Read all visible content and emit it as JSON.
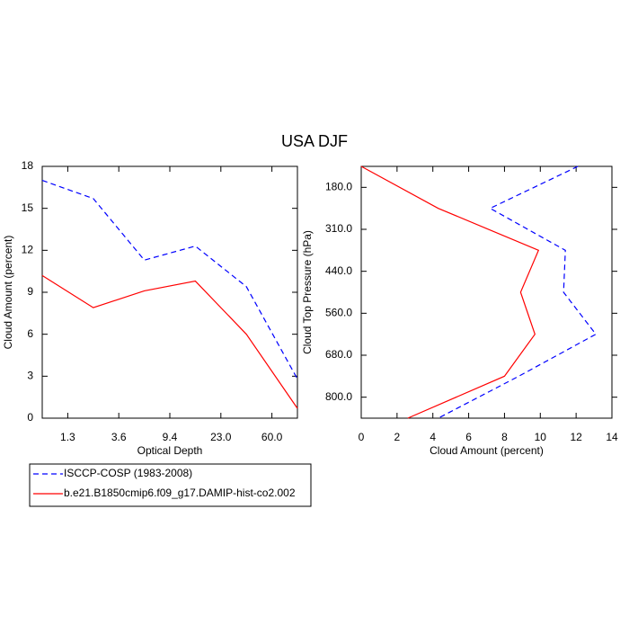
{
  "title": "USA DJF",
  "chart_data": [
    {
      "type": "line",
      "orientation": "vertical",
      "xlabel": "Optical Depth",
      "ylabel": "Cloud Amount (percent)",
      "categories": [
        null,
        null,
        null,
        null,
        null,
        null
      ],
      "xtick_labels": [
        "1.3",
        "3.6",
        "9.4",
        "23.0",
        "60.0"
      ],
      "ylim": [
        0,
        18
      ],
      "yticks": [
        0,
        3,
        6,
        9,
        12,
        15,
        18
      ],
      "series": [
        {
          "name": "ISCCP-COSP (1983-2008)",
          "color": "#0000ff",
          "style": "dashed",
          "values": [
            17.0,
            15.7,
            11.3,
            12.3,
            9.4,
            2.8
          ]
        },
        {
          "name": "b.e21.B1850cmip6.f09_g17.DAMIP-hist-co2.002",
          "color": "#ff0000",
          "style": "solid",
          "values": [
            10.2,
            7.9,
            9.1,
            9.8,
            6.0,
            0.7
          ]
        }
      ]
    },
    {
      "type": "line",
      "orientation": "horizontal",
      "xlabel": "Cloud Amount (percent)",
      "ylabel": "Cloud Top Pressure (hPa)",
      "categories": [
        null,
        null,
        null,
        null,
        null,
        null,
        null
      ],
      "ytick_labels": [
        "180.0",
        "310.0",
        "440.0",
        "560.0",
        "680.0",
        "800.0"
      ],
      "xlim": [
        0,
        14
      ],
      "xticks": [
        0,
        2,
        4,
        6,
        8,
        10,
        12,
        14
      ],
      "series": [
        {
          "color": "#0000ff",
          "style": "dashed",
          "values": [
            12.1,
            7.2,
            11.4,
            11.3,
            13.1,
            8.8,
            4.3
          ]
        },
        {
          "color": "#ff0000",
          "style": "solid",
          "values": [
            0.0,
            4.3,
            9.9,
            8.9,
            9.7,
            8.0,
            2.6
          ]
        }
      ]
    }
  ]
}
